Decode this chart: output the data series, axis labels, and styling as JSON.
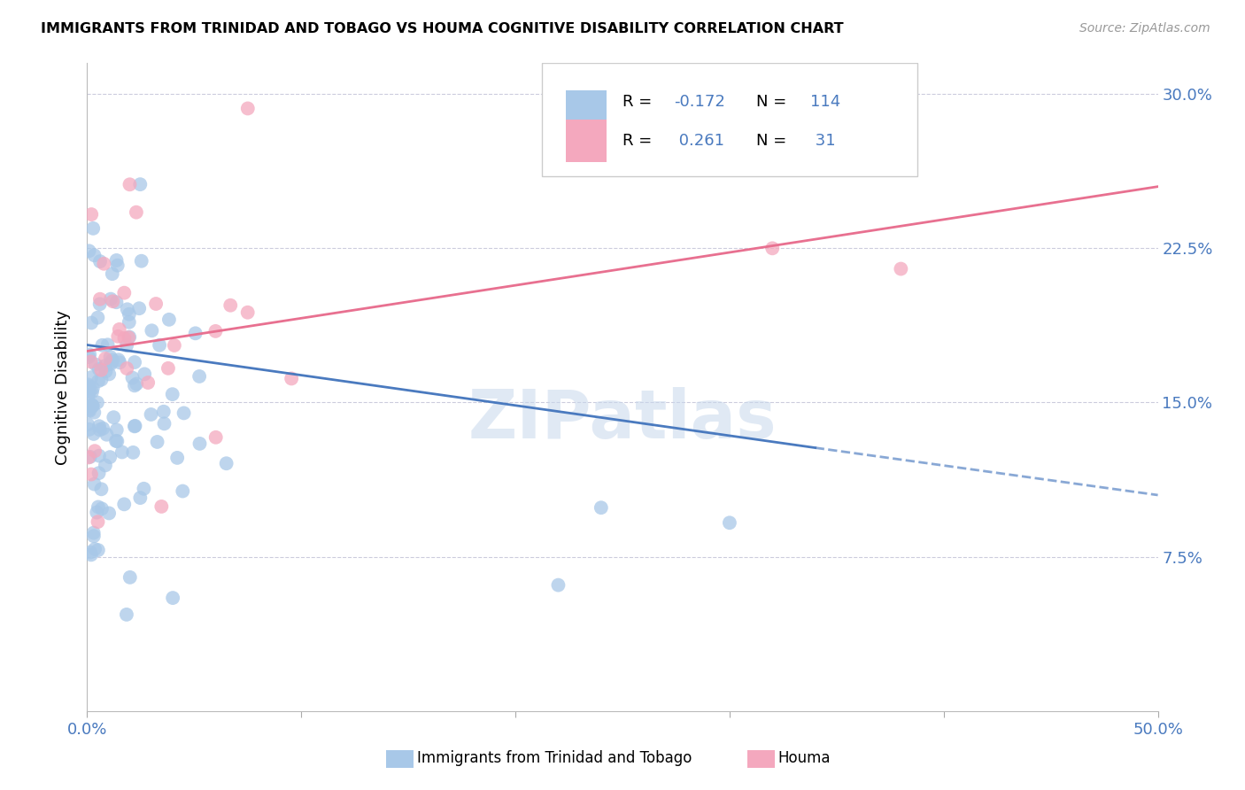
{
  "title": "IMMIGRANTS FROM TRINIDAD AND TOBAGO VS HOUMA COGNITIVE DISABILITY CORRELATION CHART",
  "source": "Source: ZipAtlas.com",
  "ylabel": "Cognitive Disability",
  "x_min": 0.0,
  "x_max": 0.5,
  "y_min": 0.0,
  "y_max": 0.315,
  "x_tick_positions": [
    0.0,
    0.1,
    0.2,
    0.3,
    0.4,
    0.5
  ],
  "x_tick_labels": [
    "0.0%",
    "",
    "",
    "",
    "",
    "50.0%"
  ],
  "y_tick_positions": [
    0.075,
    0.15,
    0.225,
    0.3
  ],
  "y_tick_labels": [
    "7.5%",
    "15.0%",
    "22.5%",
    "30.0%"
  ],
  "blue_R": -0.172,
  "blue_N": 114,
  "pink_R": 0.261,
  "pink_N": 31,
  "blue_color": "#a8c8e8",
  "pink_color": "#f4a8be",
  "blue_line_color": "#4a7abf",
  "pink_line_color": "#e87090",
  "legend_blue_label": "Immigrants from Trinidad and Tobago",
  "legend_pink_label": "Houma",
  "watermark": "ZIPatlas",
  "blue_line_start_x": 0.0,
  "blue_line_start_y": 0.178,
  "blue_line_solid_end_x": 0.34,
  "blue_line_solid_end_y": 0.128,
  "blue_line_end_x": 0.5,
  "blue_line_end_y": 0.105,
  "pink_line_start_x": 0.0,
  "pink_line_start_y": 0.175,
  "pink_line_end_x": 0.5,
  "pink_line_end_y": 0.255
}
